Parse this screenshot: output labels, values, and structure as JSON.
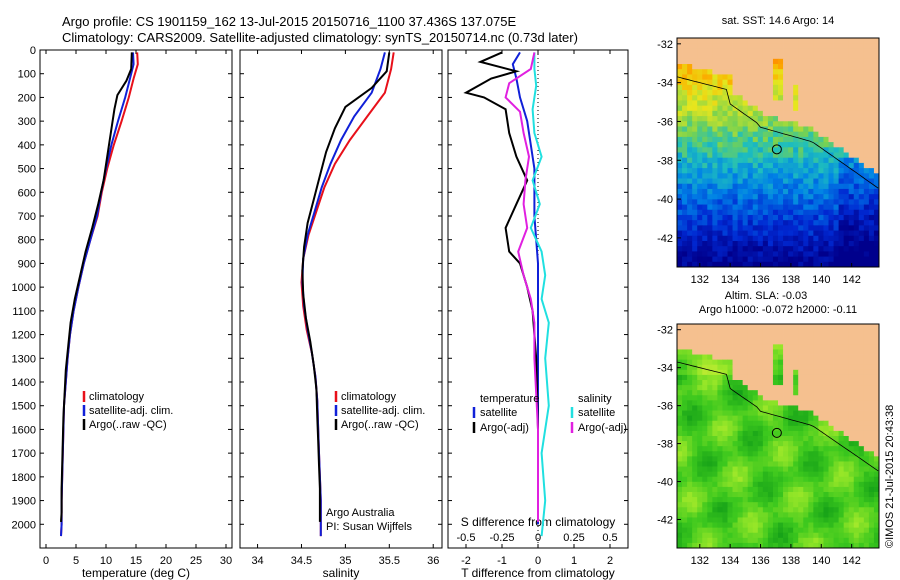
{
  "header": {
    "title": "Argo profile: CS 1901159_162 13-Jul-2015 20150716_1100 37.436S 137.075E",
    "subtitle": "Climatology: CARS2009. Satellite-adjusted climatology: synTS_20150714.nc (0.73d later)"
  },
  "colors": {
    "climatology": "#e8101a",
    "satellite": "#1020d8",
    "argo": "#000000",
    "sat_salinity": "#20e0e0",
    "argo_adj_salinity": "#e020e0",
    "land": "#f5c08f"
  },
  "chart_data": [
    {
      "type": "line",
      "id": "temperature",
      "xlabel": "temperature (deg C)",
      "xlim": [
        -1,
        31
      ],
      "xticks": [
        0,
        5,
        10,
        15,
        20,
        25,
        30
      ],
      "ylim": [
        2100,
        0
      ],
      "yticks": [
        0,
        100,
        200,
        300,
        400,
        500,
        600,
        700,
        800,
        900,
        1000,
        1100,
        1200,
        1300,
        1400,
        1500,
        1600,
        1700,
        1800,
        1900,
        2000
      ],
      "legend": [
        "climatology",
        "satellite-adj. clim.",
        "Argo(..raw -QC)"
      ],
      "legend_location": "lower-center",
      "series": [
        {
          "name": "climatology",
          "color_key": "climatology",
          "points": [
            [
              15.2,
              10
            ],
            [
              15.3,
              60
            ],
            [
              14.6,
              120
            ],
            [
              13.8,
              200
            ],
            [
              12.6,
              300
            ],
            [
              11.3,
              400
            ],
            [
              10.2,
              500
            ],
            [
              9.3,
              600
            ],
            [
              8.6,
              700
            ],
            [
              7.4,
              800
            ],
            [
              6.3,
              900
            ],
            [
              5.4,
              1000
            ],
            [
              4.6,
              1100
            ],
            [
              4.0,
              1200
            ],
            [
              3.6,
              1300
            ],
            [
              3.3,
              1400
            ],
            [
              3.0,
              1500
            ],
            [
              2.9,
              1600
            ],
            [
              2.8,
              1700
            ],
            [
              2.7,
              1800
            ],
            [
              2.6,
              1900
            ],
            [
              2.6,
              2000
            ],
            [
              2.5,
              2050
            ]
          ]
        },
        {
          "name": "satellite-adj. clim.",
          "color_key": "satellite",
          "points": [
            [
              14.5,
              10
            ],
            [
              14.6,
              60
            ],
            [
              14.0,
              120
            ],
            [
              13.2,
              200
            ],
            [
              12.0,
              300
            ],
            [
              10.9,
              400
            ],
            [
              10.0,
              500
            ],
            [
              9.2,
              600
            ],
            [
              8.5,
              700
            ],
            [
              7.4,
              800
            ],
            [
              6.3,
              900
            ],
            [
              5.4,
              1000
            ],
            [
              4.6,
              1100
            ],
            [
              4.0,
              1200
            ],
            [
              3.6,
              1300
            ],
            [
              3.3,
              1400
            ],
            [
              3.0,
              1500
            ],
            [
              2.9,
              1600
            ],
            [
              2.8,
              1700
            ],
            [
              2.7,
              1800
            ],
            [
              2.6,
              1900
            ],
            [
              2.6,
              2000
            ],
            [
              2.5,
              2050
            ]
          ]
        },
        {
          "name": "Argo(..raw -QC)",
          "color_key": "argo",
          "points": [
            [
              14.3,
              10
            ],
            [
              14.2,
              80
            ],
            [
              13.4,
              130
            ],
            [
              11.9,
              190
            ],
            [
              11.4,
              250
            ],
            [
              10.8,
              350
            ],
            [
              10.2,
              450
            ],
            [
              9.6,
              550
            ],
            [
              8.7,
              650
            ],
            [
              7.7,
              750
            ],
            [
              6.6,
              850
            ],
            [
              5.7,
              950
            ],
            [
              4.8,
              1050
            ],
            [
              4.1,
              1150
            ],
            [
              3.7,
              1250
            ],
            [
              3.3,
              1350
            ],
            [
              3.1,
              1450
            ],
            [
              2.9,
              1550
            ],
            [
              2.8,
              1650
            ],
            [
              2.7,
              1750
            ],
            [
              2.6,
              1850
            ],
            [
              2.6,
              1950
            ],
            [
              2.5,
              1990
            ]
          ]
        }
      ]
    },
    {
      "type": "line",
      "id": "salinity",
      "xlabel": "salinity",
      "xlim": [
        33.8,
        36.1
      ],
      "xticks": [
        34,
        34.5,
        35,
        35.5,
        36
      ],
      "ylim": [
        2100,
        0
      ],
      "legend": [
        "climatology",
        "satellite-adj. clim.",
        "Argo(..raw -QC)"
      ],
      "legend_location": "lower-center",
      "annotation": [
        "Argo Australia",
        "PI: Susan Wijffels"
      ],
      "series": [
        {
          "name": "climatology",
          "color_key": "climatology",
          "points": [
            [
              35.55,
              10
            ],
            [
              35.52,
              80
            ],
            [
              35.45,
              180
            ],
            [
              35.25,
              280
            ],
            [
              35.05,
              380
            ],
            [
              34.88,
              480
            ],
            [
              34.76,
              580
            ],
            [
              34.67,
              680
            ],
            [
              34.58,
              780
            ],
            [
              34.52,
              880
            ],
            [
              34.5,
              980
            ],
            [
              34.52,
              1080
            ],
            [
              34.56,
              1180
            ],
            [
              34.62,
              1280
            ],
            [
              34.66,
              1380
            ],
            [
              34.68,
              1480
            ],
            [
              34.69,
              1600
            ],
            [
              34.7,
              1700
            ],
            [
              34.71,
              1800
            ],
            [
              34.72,
              1900
            ],
            [
              34.72,
              2000
            ],
            [
              34.72,
              2050
            ]
          ]
        },
        {
          "name": "satellite-adj. clim.",
          "color_key": "satellite",
          "points": [
            [
              35.45,
              10
            ],
            [
              35.4,
              80
            ],
            [
              35.3,
              180
            ],
            [
              35.1,
              280
            ],
            [
              34.95,
              380
            ],
            [
              34.83,
              480
            ],
            [
              34.73,
              580
            ],
            [
              34.65,
              680
            ],
            [
              34.57,
              780
            ],
            [
              34.52,
              880
            ],
            [
              34.51,
              980
            ],
            [
              34.53,
              1080
            ],
            [
              34.57,
              1180
            ],
            [
              34.62,
              1280
            ],
            [
              34.66,
              1380
            ],
            [
              34.68,
              1480
            ],
            [
              34.69,
              1600
            ],
            [
              34.7,
              1700
            ],
            [
              34.71,
              1800
            ],
            [
              34.72,
              1900
            ],
            [
              34.72,
              2000
            ],
            [
              34.72,
              2050
            ]
          ]
        },
        {
          "name": "Argo(..raw -QC)",
          "color_key": "argo",
          "points": [
            [
              35.5,
              10
            ],
            [
              35.47,
              90
            ],
            [
              35.3,
              160
            ],
            [
              35.0,
              240
            ],
            [
              34.88,
              330
            ],
            [
              34.78,
              430
            ],
            [
              34.71,
              530
            ],
            [
              34.64,
              630
            ],
            [
              34.57,
              730
            ],
            [
              34.53,
              830
            ],
            [
              34.51,
              930
            ],
            [
              34.52,
              1030
            ],
            [
              34.55,
              1130
            ],
            [
              34.6,
              1230
            ],
            [
              34.64,
              1330
            ],
            [
              34.67,
              1430
            ],
            [
              34.68,
              1550
            ],
            [
              34.69,
              1650
            ],
            [
              34.7,
              1750
            ],
            [
              34.71,
              1850
            ],
            [
              34.71,
              1950
            ],
            [
              34.71,
              1990
            ]
          ]
        }
      ]
    },
    {
      "type": "line",
      "id": "difference",
      "xlabel": "T difference from climatology",
      "xlabel_top": "S difference from climatology",
      "xlim": [
        -2.5,
        2.5
      ],
      "xticks": [
        -2,
        -1,
        0,
        1,
        2
      ],
      "sticks_labels": [
        "-0.5",
        "-0.25",
        "0",
        "0.25",
        "0.5"
      ],
      "zero_line": "dotted",
      "ylim": [
        2100,
        0
      ],
      "legend_groups": [
        {
          "title": "temperature",
          "items": [
            "satellite",
            "Argo(-adj)"
          ]
        },
        {
          "title": "salinity",
          "items": [
            "satellite",
            "Argo(-adj)"
          ]
        }
      ],
      "series": [
        {
          "name": "temperature satellite",
          "color_key": "satellite",
          "points": [
            [
              -0.5,
              10
            ],
            [
              -0.7,
              60
            ],
            [
              -0.6,
              120
            ],
            [
              -0.5,
              200
            ],
            [
              -0.3,
              300
            ],
            [
              -0.2,
              400
            ],
            [
              -0.1,
              500
            ],
            [
              -0.1,
              700
            ],
            [
              0,
              900
            ],
            [
              0,
              1200
            ],
            [
              0,
              1600
            ],
            [
              0,
              2000
            ]
          ]
        },
        {
          "name": "temperature Argo(-adj)",
          "color_key": "argo",
          "points": [
            [
              -1.0,
              10
            ],
            [
              -1.6,
              50
            ],
            [
              -0.6,
              90
            ],
            [
              -1.3,
              120
            ],
            [
              -2.0,
              180
            ],
            [
              -1.5,
              200
            ],
            [
              -0.9,
              250
            ],
            [
              -0.8,
              350
            ],
            [
              -0.6,
              450
            ],
            [
              -0.3,
              550
            ],
            [
              -0.6,
              650
            ],
            [
              -0.9,
              750
            ],
            [
              -0.8,
              850
            ],
            [
              -0.5,
              900
            ],
            [
              -0.3,
              1000
            ],
            [
              -0.15,
              1100
            ],
            [
              -0.05,
              1300
            ],
            [
              0,
              1600
            ],
            [
              0,
              1990
            ]
          ]
        },
        {
          "name": "salinity satellite",
          "color_key": "sat_salinity",
          "points": [
            [
              -0.1,
              10
            ],
            [
              -0.1,
              80
            ],
            [
              -0.05,
              150
            ],
            [
              -0.15,
              250
            ],
            [
              -0.1,
              350
            ],
            [
              0.1,
              450
            ],
            [
              -0.15,
              550
            ],
            [
              0.05,
              650
            ],
            [
              -0.2,
              750
            ],
            [
              0.1,
              850
            ],
            [
              0.2,
              950
            ],
            [
              0.1,
              1050
            ],
            [
              0.3,
              1150
            ],
            [
              0.2,
              1300
            ],
            [
              0.3,
              1500
            ],
            [
              0.1,
              1700
            ],
            [
              0.2,
              1900
            ],
            [
              0.1,
              2050
            ]
          ]
        },
        {
          "name": "salinity Argo(-adj)",
          "color_key": "argo_adj_salinity",
          "points": [
            [
              -0.1,
              10
            ],
            [
              -0.2,
              80
            ],
            [
              -0.8,
              140
            ],
            [
              -0.9,
              200
            ],
            [
              -0.5,
              260
            ],
            [
              -0.4,
              350
            ],
            [
              -0.25,
              450
            ],
            [
              -0.35,
              550
            ],
            [
              -0.4,
              650
            ],
            [
              -0.3,
              750
            ],
            [
              -0.55,
              850
            ],
            [
              -0.4,
              950
            ],
            [
              -0.2,
              1050
            ],
            [
              -0.1,
              1150
            ],
            [
              -0.1,
              1300
            ],
            [
              0,
              1600
            ],
            [
              0,
              1990
            ]
          ]
        }
      ]
    },
    {
      "type": "heatmap",
      "id": "sst_map",
      "title": "sat. SST: 14.6 Argo: 14",
      "xlim": [
        130.5,
        143.8
      ],
      "ylim": [
        -43.5,
        -31.7
      ],
      "xticks": [
        132,
        134,
        136,
        138,
        140,
        142
      ],
      "yticks": [
        -32,
        -34,
        -36,
        -38,
        -40,
        -42
      ],
      "marker": {
        "lon": 137.075,
        "lat": -37.436
      }
    },
    {
      "type": "heatmap",
      "id": "sla_map",
      "title_lines": [
        "Altim. SLA: -0.03",
        "Argo h1000: -0.072 h2000: -0.11"
      ],
      "xlim": [
        130.5,
        143.8
      ],
      "ylim": [
        -43.5,
        -31.7
      ],
      "xticks": [
        132,
        134,
        136,
        138,
        140,
        142
      ],
      "yticks": [
        -32,
        -34,
        -36,
        -38,
        -40,
        -42
      ],
      "marker": {
        "lon": 137.075,
        "lat": -37.436
      }
    }
  ],
  "watermark": "©IMOS 21-Jul-2015 20:43:38"
}
